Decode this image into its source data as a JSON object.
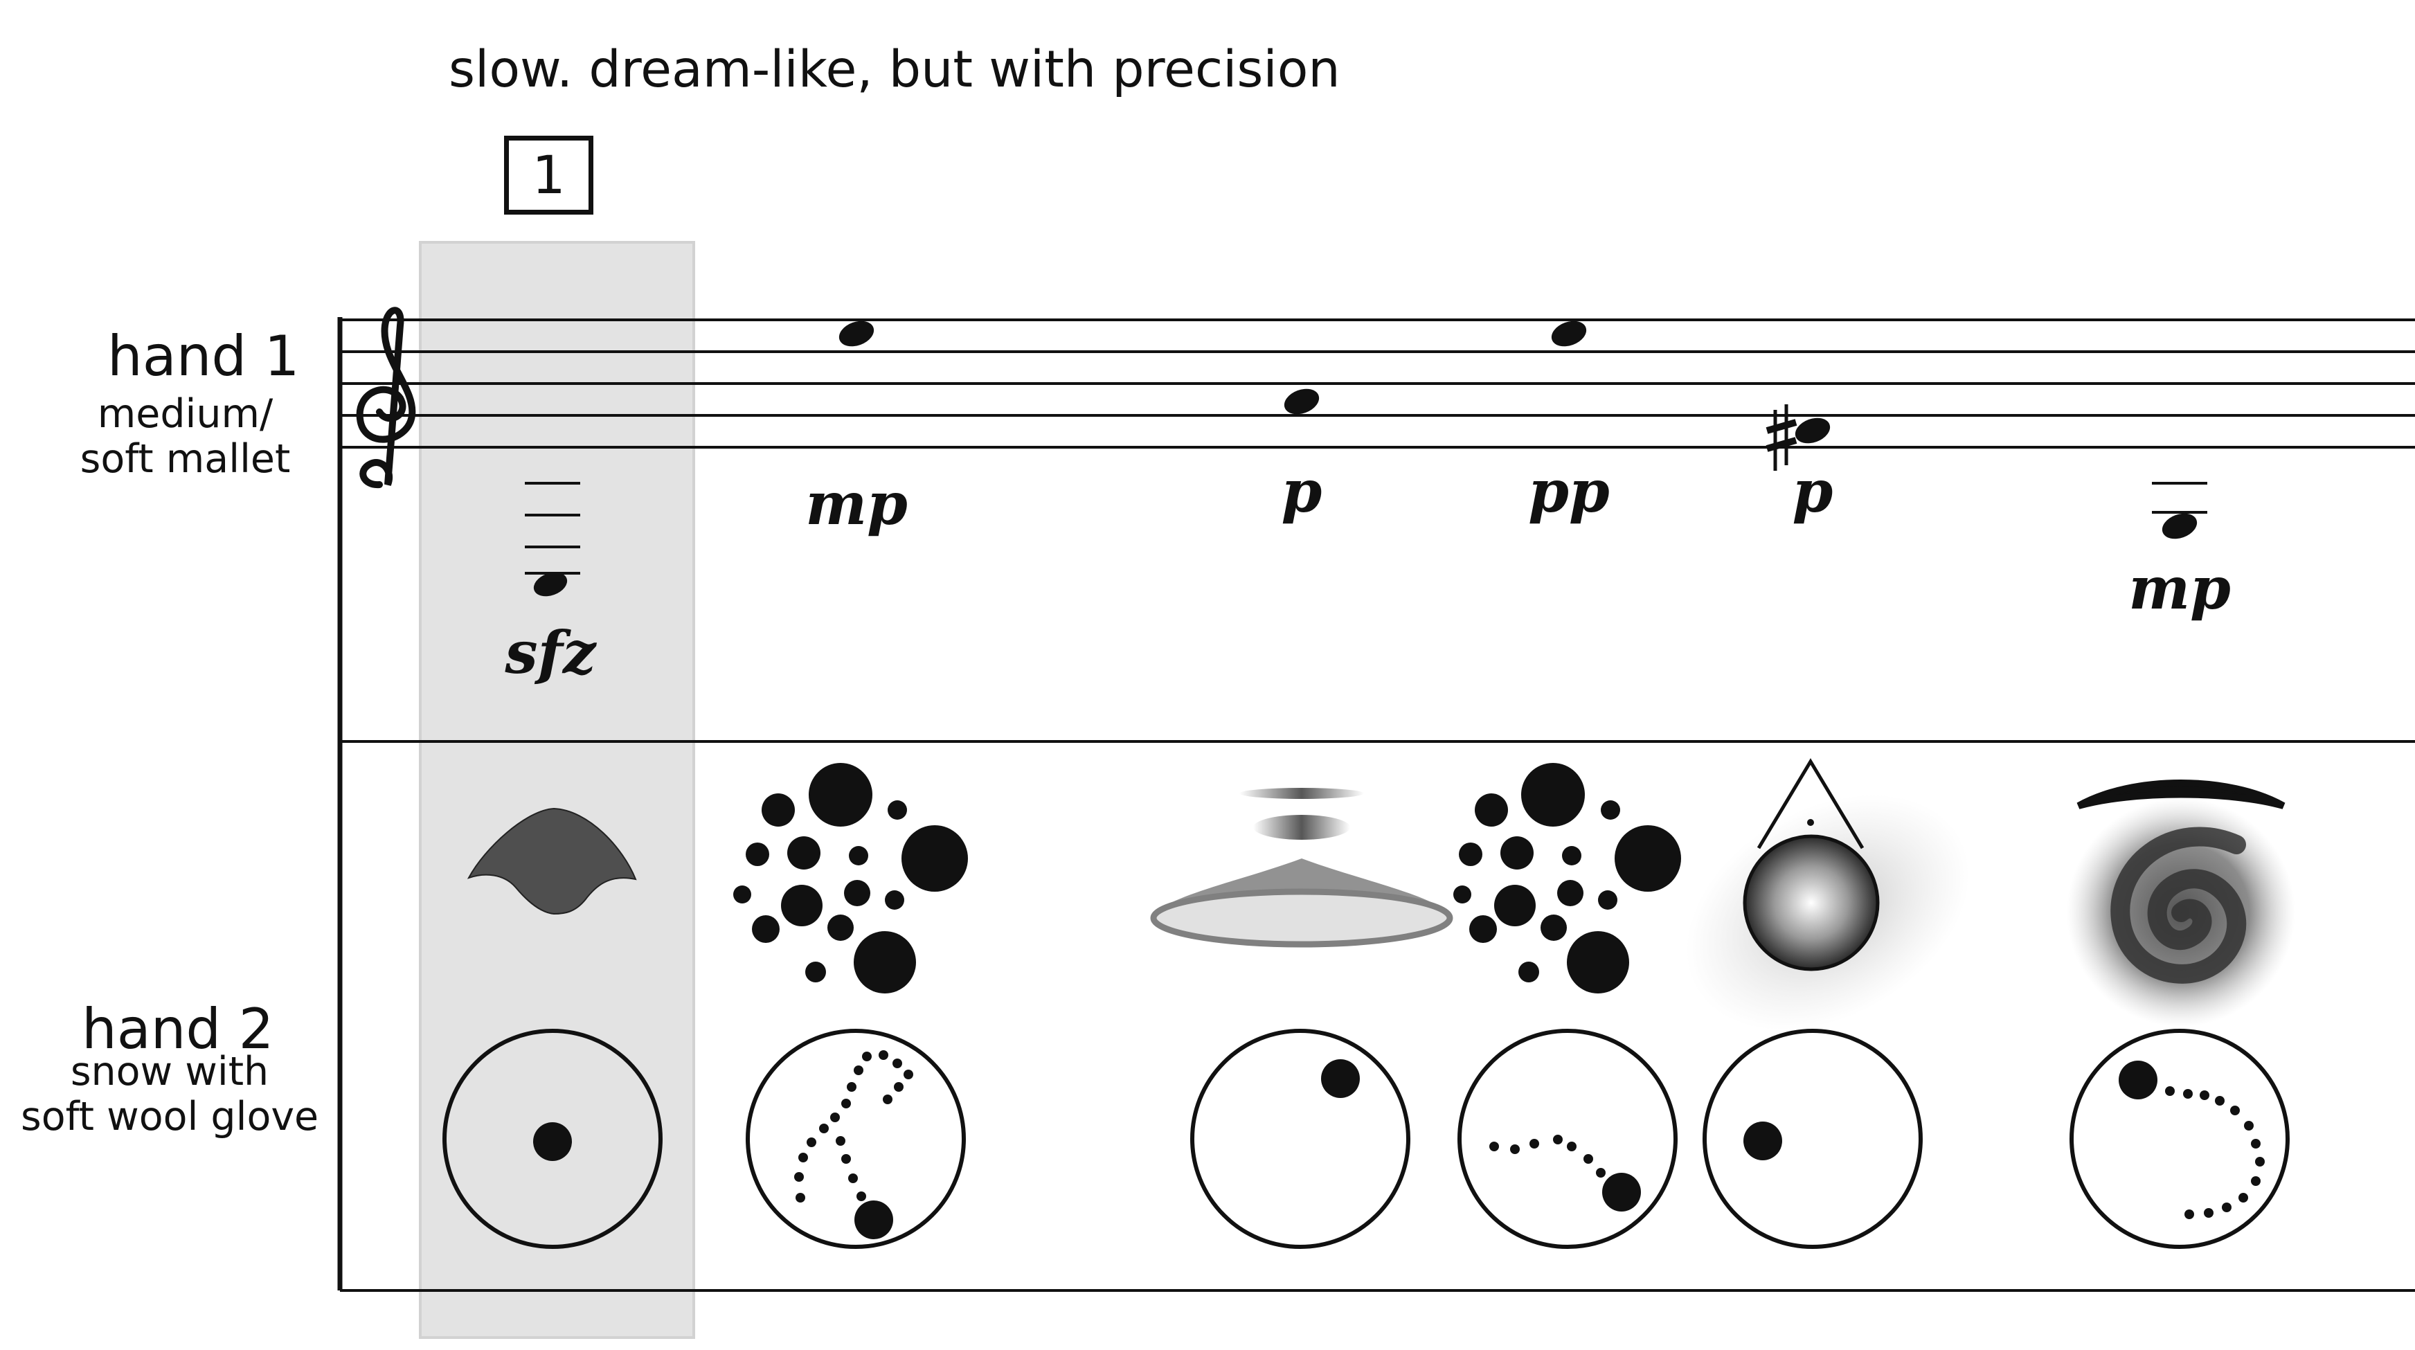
{
  "tempo_marking": "slow. dream-like, but with precision",
  "rehearsal_mark": "1",
  "instruments": {
    "hand1": {
      "name": "hand 1",
      "implement": [
        "medium/",
        "soft mallet"
      ]
    },
    "hand2": {
      "name": "hand 2",
      "implement": [
        "snow with",
        "soft wool glove"
      ]
    }
  },
  "dynamics": [
    "sfz",
    "mp",
    "p",
    "pp",
    "p",
    "mp"
  ],
  "symbols": [
    "treble-clef-icon",
    "sharp-icon",
    "note-head-icon",
    "circle-diagram-icon",
    "cloud-shape-icon",
    "dot-cluster-icon",
    "disc-icon",
    "gradient-sphere-icon",
    "spiral-icon"
  ],
  "colors": {
    "highlight": "#e3e3e3",
    "ink": "#111111"
  }
}
